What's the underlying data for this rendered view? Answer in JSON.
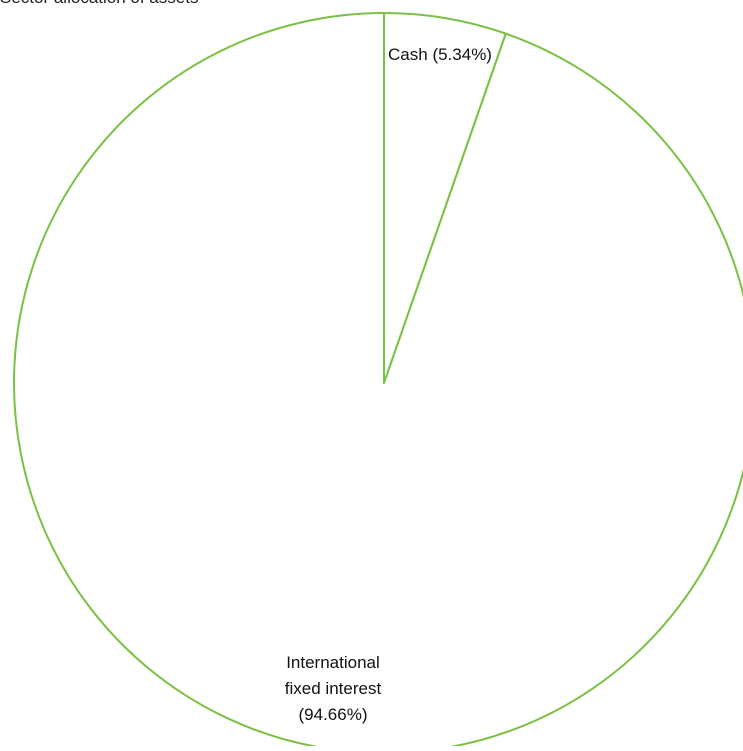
{
  "chart_data": {
    "type": "pie",
    "title": "Sector allocation of assets",
    "categories": [
      "Cash",
      "International fixed interest"
    ],
    "values": [
      5.34,
      94.66
    ],
    "value_unit": "%",
    "labels": [
      [
        "Cash (5.34%)"
      ],
      [
        "International",
        "fixed interest",
        "(94.66%)"
      ]
    ],
    "colors": {
      "slice_fill": "#ffffff",
      "slice_stroke": "#7ac143",
      "text": "#111111"
    },
    "legend": "none",
    "start_angle": "12 o'clock",
    "direction": "clockwise"
  }
}
